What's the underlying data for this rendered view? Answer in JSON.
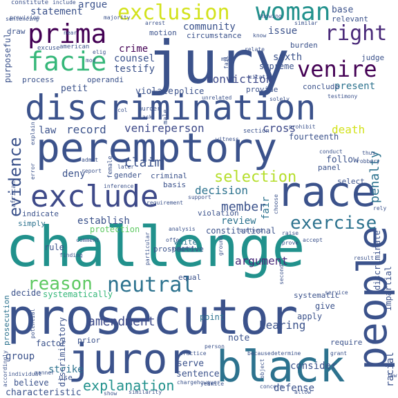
{
  "words": [
    {
      "text": "challenge",
      "color": "#21918c"
    },
    {
      "text": "jury",
      "color": "#3b528b"
    },
    {
      "text": "prosecutor",
      "color": "#3b528b"
    },
    {
      "text": "discrimination",
      "color": "#3b528b"
    },
    {
      "text": "peremptory",
      "color": "#3b528b"
    },
    {
      "text": "exclude",
      "color": "#3e4a89"
    },
    {
      "text": "race",
      "color": "#3b528b"
    },
    {
      "text": "black",
      "color": "#2c728e"
    },
    {
      "text": "juror",
      "color": "#3b528b"
    },
    {
      "text": "people",
      "color": "#3b528b"
    },
    {
      "text": "woman",
      "color": "#21918c"
    },
    {
      "text": "prima",
      "color": "#440154"
    },
    {
      "text": "facie",
      "color": "#35b779"
    },
    {
      "text": "venire",
      "color": "#440154"
    },
    {
      "text": "exclusion",
      "color": "#d2e21b"
    },
    {
      "text": "right",
      "color": "#482878"
    },
    {
      "text": "evidence",
      "color": "#3b528b"
    },
    {
      "text": "neutral",
      "color": "#2c728e"
    },
    {
      "text": "reason",
      "color": "#5ec962"
    },
    {
      "text": "exercise",
      "color": "#2c728e"
    },
    {
      "text": "selection",
      "color": "#b5de2b"
    },
    {
      "text": "penalty",
      "color": "#2c728e"
    },
    {
      "text": "member",
      "color": "#3b528b"
    },
    {
      "text": "amendment",
      "color": "#3e4a89"
    },
    {
      "text": "explanation",
      "color": "#21918c"
    },
    {
      "text": "argument",
      "color": "#482878"
    },
    {
      "text": "claim",
      "color": "#3b528b"
    },
    {
      "text": "decision",
      "color": "#2c728e"
    },
    {
      "text": "death",
      "color": "#d2e21b"
    },
    {
      "text": "cross",
      "color": "#3e4a89"
    },
    {
      "text": "venireperson",
      "color": "#3e4a89"
    },
    {
      "text": "record",
      "color": "#3b528b"
    },
    {
      "text": "law",
      "color": "#3b528b"
    },
    {
      "text": "deny",
      "color": "#3b528b"
    },
    {
      "text": "conviction",
      "color": "#3e4a89"
    },
    {
      "text": "counsel",
      "color": "#3b528b"
    },
    {
      "text": "testify",
      "color": "#3b528b"
    },
    {
      "text": "crime",
      "color": "#440154"
    },
    {
      "text": "issue",
      "color": "#3b528b"
    },
    {
      "text": "community",
      "color": "#3b528b"
    },
    {
      "text": "circumstance",
      "color": "#3b528b"
    },
    {
      "text": "statement",
      "color": "#3b528b"
    },
    {
      "text": "argue",
      "color": "#3b528b"
    },
    {
      "text": "base",
      "color": "#3b528b"
    },
    {
      "text": "relevant",
      "color": "#3b528b"
    },
    {
      "text": "sixth",
      "color": "#3b528b"
    },
    {
      "text": "supreme",
      "color": "#3b528b"
    },
    {
      "text": "present",
      "color": "#2c728e"
    },
    {
      "text": "follow",
      "color": "#3b528b"
    },
    {
      "text": "hearing",
      "color": "#3b528b"
    },
    {
      "text": "note",
      "color": "#3b528b"
    },
    {
      "text": "strike",
      "color": "#2c728e"
    },
    {
      "text": "group",
      "color": "#3b528b"
    },
    {
      "text": "establish",
      "color": "#3b528b"
    },
    {
      "text": "review",
      "color": "#2c728e"
    },
    {
      "text": "fair",
      "color": "#2c728e"
    },
    {
      "text": "fourteenth",
      "color": "#3b528b"
    },
    {
      "text": "constitutional",
      "color": "#3b528b"
    },
    {
      "text": "defense",
      "color": "#3b528b"
    },
    {
      "text": "consider",
      "color": "#3b528b"
    },
    {
      "text": "sentence",
      "color": "#3b528b"
    },
    {
      "text": "serve",
      "color": "#3b528b"
    },
    {
      "text": "point",
      "color": "#2c728e"
    },
    {
      "text": "equal",
      "color": "#3b528b"
    },
    {
      "text": "prospective",
      "color": "#3b528b"
    },
    {
      "text": "white",
      "color": "#2c728e"
    },
    {
      "text": "protection",
      "color": "#5ec962"
    },
    {
      "text": "purposeful",
      "color": "#3b528b"
    },
    {
      "text": "petit",
      "color": "#3b528b"
    },
    {
      "text": "violate",
      "color": "#3b528b"
    },
    {
      "text": "police",
      "color": "#3b528b"
    },
    {
      "text": "provide",
      "color": "#3b528b"
    },
    {
      "text": "process",
      "color": "#3b528b"
    },
    {
      "text": "operandi",
      "color": "#3b528b"
    },
    {
      "text": "motion",
      "color": "#3b528b"
    },
    {
      "text": "burden",
      "color": "#3b528b"
    },
    {
      "text": "judge",
      "color": "#3b528b"
    },
    {
      "text": "conclude",
      "color": "#3b528b"
    },
    {
      "text": "racial",
      "color": "#3b528b"
    },
    {
      "text": "discriminate",
      "color": "#3b528b"
    },
    {
      "text": "impartial",
      "color": "#3b528b"
    },
    {
      "text": "indicate",
      "color": "#3b528b"
    },
    {
      "text": "simply",
      "color": "#2c728e"
    },
    {
      "text": "rule",
      "color": "#3b528b"
    },
    {
      "text": "decide",
      "color": "#3b528b"
    },
    {
      "text": "systematically",
      "color": "#35b779"
    },
    {
      "text": "factor",
      "color": "#3b528b"
    },
    {
      "text": "prior",
      "color": "#3b528b"
    },
    {
      "text": "believe",
      "color": "#3b528b"
    },
    {
      "text": "use",
      "color": "#3b528b"
    },
    {
      "text": "characteristic",
      "color": "#3b528b"
    },
    {
      "text": "discriminatory",
      "color": "#3b528b"
    },
    {
      "text": "prosecution",
      "color": "#2c728e"
    },
    {
      "text": "require",
      "color": "#3b528b"
    },
    {
      "text": "give",
      "color": "#3b528b"
    },
    {
      "text": "apply",
      "color": "#3b528b"
    },
    {
      "text": "systematic",
      "color": "#3b528b"
    },
    {
      "text": "select",
      "color": "#3b528b"
    },
    {
      "text": "panel",
      "color": "#3b528b"
    },
    {
      "text": "criminal",
      "color": "#3b528b"
    },
    {
      "text": "basis",
      "color": "#3b528b"
    },
    {
      "text": "violation",
      "color": "#3b528b"
    },
    {
      "text": "gender",
      "color": "#3b528b"
    },
    {
      "text": "section",
      "color": "#3b528b"
    },
    {
      "text": "american",
      "color": "#3b528b"
    },
    {
      "text": "excuse",
      "color": "#3b528b"
    },
    {
      "text": "draw",
      "color": "#3b528b"
    },
    {
      "text": "constitute",
      "color": "#3b528b"
    },
    {
      "text": "include",
      "color": "#3b528b"
    },
    {
      "text": "african",
      "color": "#3b528b"
    },
    {
      "text": "provision",
      "color": "#3b528b"
    },
    {
      "text": "majority",
      "color": "#3b528b"
    },
    {
      "text": "arrest",
      "color": "#3b528b"
    },
    {
      "text": "similar",
      "color": "#3b528b"
    },
    {
      "text": "showing",
      "color": "#3b528b"
    },
    {
      "text": "know",
      "color": "#3b528b"
    },
    {
      "text": "relate",
      "color": "#3b528b"
    },
    {
      "text": "citation",
      "color": "#3b528b"
    },
    {
      "text": "unrelated",
      "color": "#3b528b"
    },
    {
      "text": "solely",
      "color": "#3b528b"
    },
    {
      "text": "testimony",
      "color": "#3b528b"
    },
    {
      "text": "murder",
      "color": "#3b528b"
    },
    {
      "text": "male",
      "color": "#3b528b"
    },
    {
      "text": "ask",
      "color": "#3b528b"
    },
    {
      "text": "witness",
      "color": "#3b528b"
    },
    {
      "text": "prohibit",
      "color": "#3b528b"
    },
    {
      "text": "conduct",
      "color": "#3b528b"
    },
    {
      "text": "robbery",
      "color": "#3b528b"
    },
    {
      "text": "admit",
      "color": "#3b528b"
    },
    {
      "text": "report",
      "color": "#3b528b"
    },
    {
      "text": "later",
      "color": "#3b528b"
    },
    {
      "text": "female",
      "color": "#3b528b"
    },
    {
      "text": "inference",
      "color": "#3b528b"
    },
    {
      "text": "support",
      "color": "#3b528b"
    },
    {
      "text": "requirement",
      "color": "#3b528b"
    },
    {
      "text": "analysis",
      "color": "#3b528b"
    },
    {
      "text": "comment",
      "color": "#3b528b"
    },
    {
      "text": "offer",
      "color": "#3b528b"
    },
    {
      "text": "suggest",
      "color": "#3b528b"
    },
    {
      "text": "contend",
      "color": "#3b528b"
    },
    {
      "text": "raise",
      "color": "#3b528b"
    },
    {
      "text": "prove",
      "color": "#3b528b"
    },
    {
      "text": "accept",
      "color": "#3b528b"
    },
    {
      "text": "service",
      "color": "#3b528b"
    },
    {
      "text": "result",
      "color": "#3b528b"
    },
    {
      "text": "finding",
      "color": "#3b528b"
    },
    {
      "text": "particular",
      "color": "#3b528b"
    },
    {
      "text": "ground",
      "color": "#3b528b"
    },
    {
      "text": "second",
      "color": "#3b528b"
    },
    {
      "text": "potential",
      "color": "#3b528b"
    },
    {
      "text": "sentencing",
      "color": "#3b528b"
    },
    {
      "text": "accordingly",
      "color": "#3b528b"
    },
    {
      "text": "individual",
      "color": "#3b528b"
    },
    {
      "text": "practice",
      "color": "#3b528b"
    },
    {
      "text": "person",
      "color": "#3b528b"
    },
    {
      "text": "because",
      "color": "#3b528b"
    },
    {
      "text": "determine",
      "color": "#3b528b"
    },
    {
      "text": "grant",
      "color": "#3b528b"
    },
    {
      "text": "object",
      "color": "#3b528b"
    },
    {
      "text": "year",
      "color": "#3b528b"
    },
    {
      "text": "similarity",
      "color": "#3b528b"
    },
    {
      "text": "chargehowever",
      "color": "#3b528b"
    },
    {
      "text": "concern",
      "color": "#3b528b"
    },
    {
      "text": "allow",
      "color": "#3b528b"
    },
    {
      "text": "manner",
      "color": "#3b528b"
    },
    {
      "text": "show",
      "color": "#3b528b"
    },
    {
      "text": "error",
      "color": "#3b528b"
    },
    {
      "text": "explain",
      "color": "#3b528b"
    },
    {
      "text": "rely",
      "color": "#3b528b"
    },
    {
      "text": "thus",
      "color": "#3b528b"
    },
    {
      "text": "choose",
      "color": "#3b528b"
    },
    {
      "text": "few",
      "color": "#3b528b"
    },
    {
      "text": "mean",
      "color": "#3b528b"
    },
    {
      "text": "elig",
      "color": "#3b528b"
    },
    {
      "text": "twice",
      "color": "#3b528b"
    },
    {
      "text": "mod",
      "color": "#3b528b"
    },
    {
      "text": "fail",
      "color": "#3b528b"
    },
    {
      "text": "col",
      "color": "#3b528b"
    },
    {
      "text": "near",
      "color": "#3b528b"
    }
  ]
}
